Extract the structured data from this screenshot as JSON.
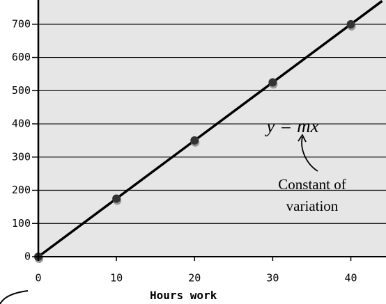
{
  "chart_data": {
    "type": "scatter",
    "xlabel": "Hours work",
    "points": {
      "x": [
        0,
        10,
        20,
        30,
        40
      ],
      "values": [
        0,
        175,
        350,
        525,
        700
      ],
      "color": "#333333"
    },
    "line": {
      "x": [
        0,
        44
      ],
      "values": [
        0,
        770
      ],
      "color": "#000000"
    },
    "xlim": [
      0,
      44.5
    ],
    "ylim": [
      0,
      773
    ],
    "xticks": [
      0,
      10,
      20,
      30,
      40
    ],
    "yticks": [
      0,
      100,
      200,
      300,
      400,
      500,
      600,
      700
    ],
    "grid": true,
    "annotations": [
      "y = mx",
      "Constant of",
      "variation"
    ]
  }
}
